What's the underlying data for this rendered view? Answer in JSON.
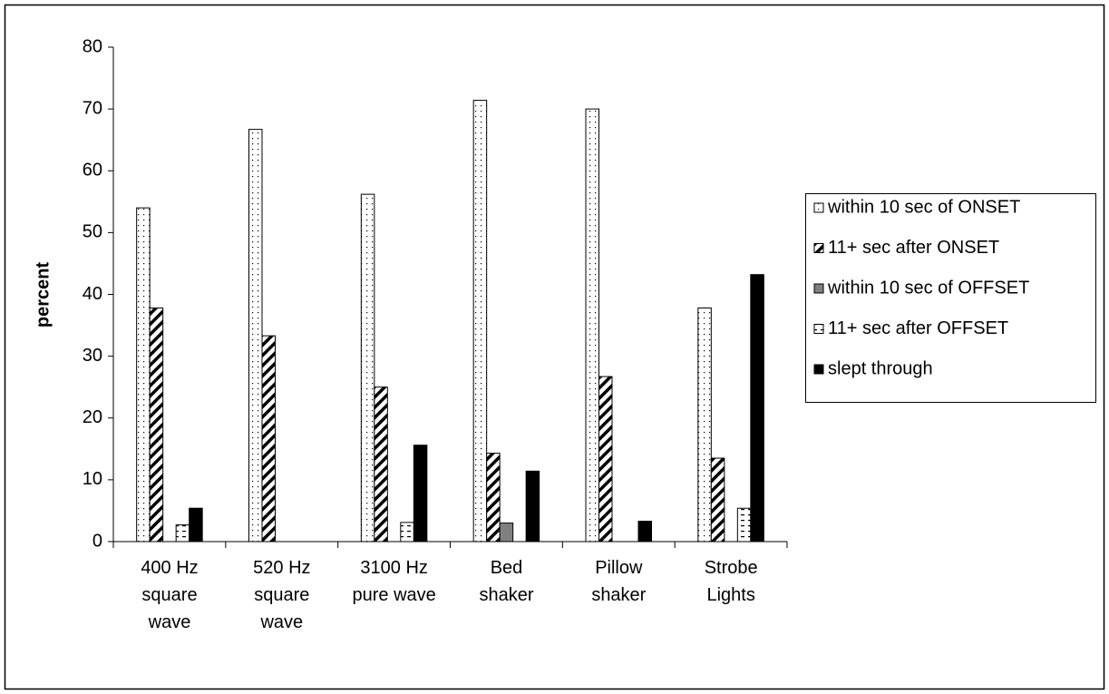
{
  "chart_data": {
    "type": "bar",
    "y_label": "percent",
    "categories": [
      "400 Hz\nsquare\nwave",
      "520 Hz\nsquare\nwave",
      "3100 Hz\npure wave",
      "Bed\nshaker",
      "Pillow\nshaker",
      "Strobe\nLights"
    ],
    "series": [
      {
        "name": "within 10 sec of ONSET",
        "color": "#ffffff",
        "pattern": "dots",
        "values": [
          54,
          66.7,
          56.2,
          71.4,
          70,
          37.8
        ]
      },
      {
        "name": "11+ sec after ONSET",
        "color": "#ffffff",
        "pattern": "hatch",
        "values": [
          37.8,
          33.3,
          25,
          14.3,
          26.7,
          13.5
        ]
      },
      {
        "name": "within 10 sec of OFFSET",
        "color": "#808080",
        "pattern": "solid",
        "values": [
          0,
          0,
          0,
          3,
          0,
          0
        ]
      },
      {
        "name": "11+ sec after OFFSET",
        "color": "#ffffff",
        "pattern": "dashes",
        "values": [
          2.7,
          0,
          3.1,
          0,
          0,
          5.4
        ]
      },
      {
        "name": "slept through",
        "color": "#000000",
        "pattern": "solid",
        "values": [
          5.4,
          0,
          15.6,
          11.4,
          3.3,
          43.2
        ]
      }
    ],
    "ylim": [
      0,
      80
    ],
    "yticks": [
      0,
      10,
      20,
      30,
      40,
      50,
      60,
      70,
      80
    ],
    "grid": false,
    "legend": "right"
  }
}
